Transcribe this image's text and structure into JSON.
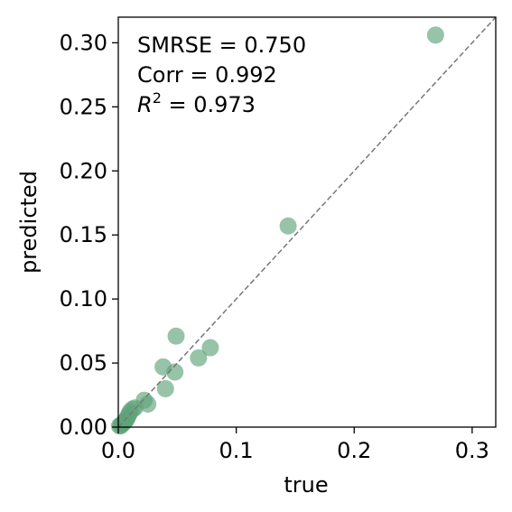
{
  "chart_data": {
    "type": "scatter",
    "xlabel": "true",
    "ylabel": "predicted",
    "xlim": [
      0,
      0.32
    ],
    "ylim": [
      0,
      0.32
    ],
    "x_ticks": [
      0.0,
      0.1,
      0.2,
      0.3
    ],
    "x_tick_labels": [
      "0.0",
      "0.1",
      "0.2",
      "0.3"
    ],
    "y_ticks": [
      0.0,
      0.05,
      0.1,
      0.15,
      0.2,
      0.25,
      0.3
    ],
    "y_tick_labels": [
      "0.00",
      "0.05",
      "0.10",
      "0.15",
      "0.20",
      "0.25",
      "0.30"
    ],
    "grid": false,
    "reference_line": {
      "type": "identity",
      "style": "dashed",
      "color": "#777777"
    },
    "marker_color": "#5fa37a",
    "annotations": {
      "smrse_label": "SMRSE = 0.750",
      "corr_label": "Corr = 0.992",
      "r2_symbol": "R",
      "r2_superscript": "2",
      "r2_value": " = 0.973"
    },
    "points": [
      {
        "x": 0.269,
        "y": 0.306
      },
      {
        "x": 0.144,
        "y": 0.157
      },
      {
        "x": 0.078,
        "y": 0.062
      },
      {
        "x": 0.068,
        "y": 0.054
      },
      {
        "x": 0.049,
        "y": 0.071
      },
      {
        "x": 0.048,
        "y": 0.043
      },
      {
        "x": 0.038,
        "y": 0.047
      },
      {
        "x": 0.04,
        "y": 0.03
      },
      {
        "x": 0.025,
        "y": 0.018
      },
      {
        "x": 0.022,
        "y": 0.021
      },
      {
        "x": 0.014,
        "y": 0.015
      },
      {
        "x": 0.012,
        "y": 0.014
      },
      {
        "x": 0.01,
        "y": 0.012
      },
      {
        "x": 0.009,
        "y": 0.01
      },
      {
        "x": 0.008,
        "y": 0.008
      },
      {
        "x": 0.007,
        "y": 0.006
      },
      {
        "x": 0.006,
        "y": 0.005
      },
      {
        "x": 0.005,
        "y": 0.004
      },
      {
        "x": 0.004,
        "y": 0.003
      },
      {
        "x": 0.003,
        "y": 0.002
      },
      {
        "x": 0.002,
        "y": 0.001
      },
      {
        "x": 0.001,
        "y": 0.001
      }
    ]
  }
}
